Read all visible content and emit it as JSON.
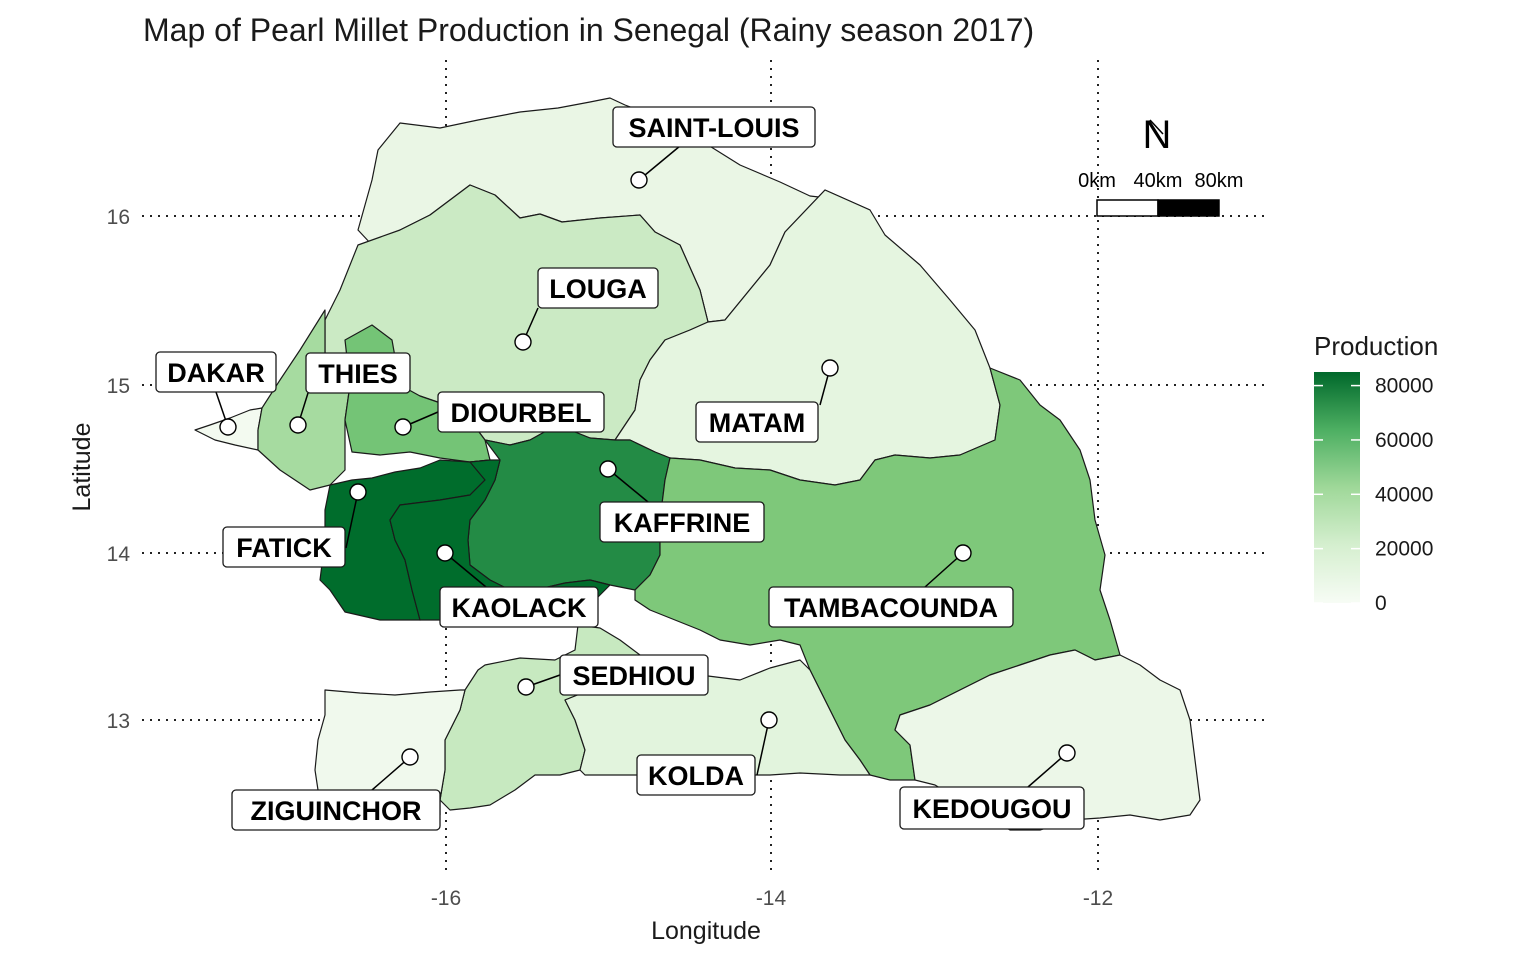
{
  "title": "Map of Pearl Millet Production in Senegal (Rainy season 2017)",
  "xlabel": "Longitude",
  "ylabel": "Latitude",
  "x_ticks": [
    -16,
    -14,
    -12
  ],
  "y_ticks": [
    13,
    14,
    15,
    16
  ],
  "legend": {
    "title": "Production",
    "ticks": [
      0,
      20000,
      40000,
      60000,
      80000
    ],
    "range": [
      0,
      85000
    ],
    "low_color": "#f7fcf5",
    "high_color": "#00682b"
  },
  "north_arrow": {
    "symbol": "N"
  },
  "scale_bar": {
    "labels": [
      "0km",
      "40km",
      "80km"
    ]
  },
  "regions": [
    {
      "name": "SAINT-LOUIS",
      "color": "#eaf6e5",
      "lon": -14.75,
      "lat": 16.22
    },
    {
      "name": "LOUGA",
      "color": "#cbeac4",
      "lon": -15.48,
      "lat": 15.26
    },
    {
      "name": "DAKAR",
      "color": "#f3faf0",
      "lon": -17.3,
      "lat": 14.75
    },
    {
      "name": "THIES",
      "color": "#a6dba0",
      "lon": -16.9,
      "lat": 14.77
    },
    {
      "name": "DIOURBEL",
      "color": "#74c476",
      "lon": -16.26,
      "lat": 14.75
    },
    {
      "name": "MATAM",
      "color": "#e5f5e0",
      "lon": -13.63,
      "lat": 15.1
    },
    {
      "name": "FATICK",
      "color": "#006d2c",
      "lon": -16.53,
      "lat": 14.36
    },
    {
      "name": "KAFFRINE",
      "color": "#238b45",
      "lon": -15.0,
      "lat": 14.51
    },
    {
      "name": "KAOLACK",
      "color": "#006d2c",
      "lon": -16.0,
      "lat": 14.0
    },
    {
      "name": "TAMBACOUNDA",
      "color": "#7ec87a",
      "lon": -12.8,
      "lat": 14.0
    },
    {
      "name": "SEDHIOU",
      "color": "#c7e9c0",
      "lon": -15.5,
      "lat": 13.2
    },
    {
      "name": "KOLDA",
      "color": "#e2f4dd",
      "lon": -14.0,
      "lat": 13.0
    },
    {
      "name": "ZIGUINCHOR",
      "color": "#f0f9ed",
      "lon": -16.2,
      "lat": 12.8
    },
    {
      "name": "KEDOUGOU",
      "color": "#ecf7e8",
      "lon": -12.2,
      "lat": 12.8
    }
  ]
}
